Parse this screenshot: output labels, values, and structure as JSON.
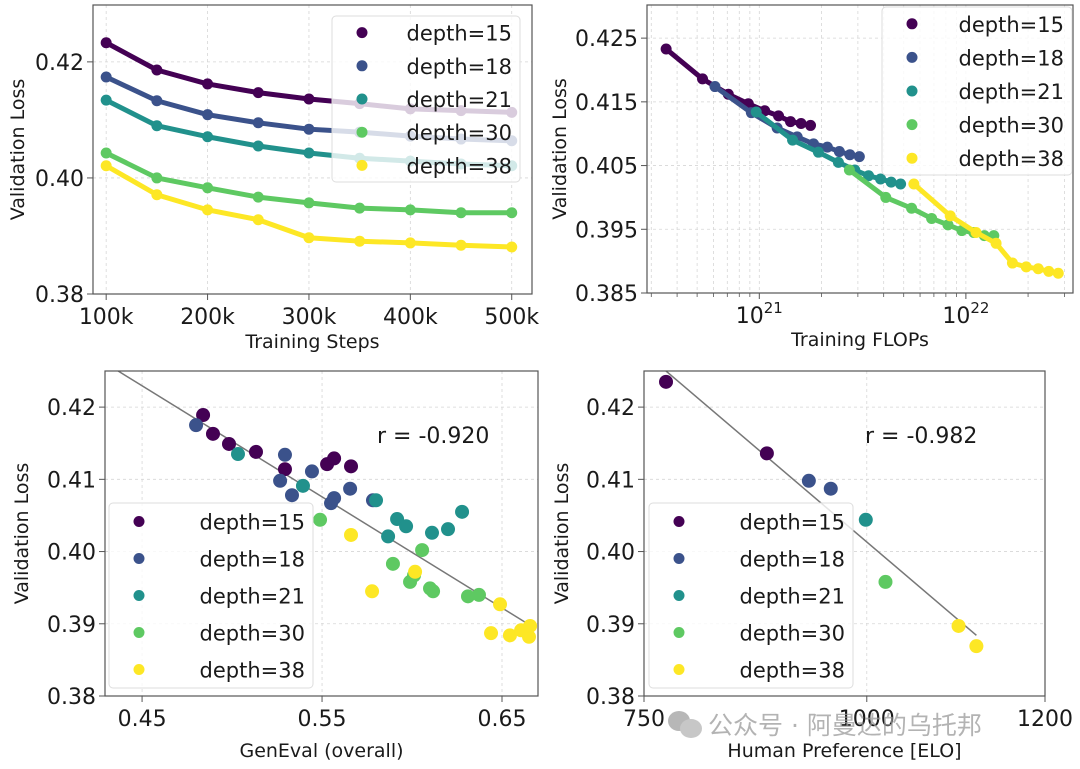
{
  "colors": {
    "depth=15": "#440154",
    "depth=18": "#3b528b",
    "depth=21": "#21918c",
    "depth=30": "#5ec962",
    "depth=38": "#fde725",
    "fit_line": "#777777"
  },
  "watermark": {
    "text": "公众号 · 阿曼达的乌托邦",
    "icon": "wechat-icon"
  },
  "chart_data": [
    {
      "id": "steps",
      "type": "line",
      "title": "",
      "xlabel": "Training Steps",
      "ylabel": "Validation Loss",
      "xscale": "linear",
      "xlim": [
        87000,
        520000
      ],
      "ylim": [
        0.38,
        0.4298
      ],
      "xticks": [
        100000,
        200000,
        300000,
        400000,
        500000
      ],
      "xtick_labels": [
        "100k",
        "200k",
        "300k",
        "400k",
        "500k"
      ],
      "yticks": [
        0.38,
        0.4,
        0.42
      ],
      "ytick_labels": [
        "0.38",
        "0.40",
        "0.42"
      ],
      "grid": true,
      "legend": "top-right",
      "x": [
        100000,
        150000,
        200000,
        250000,
        300000,
        350000,
        400000,
        450000,
        500000
      ],
      "series": [
        {
          "name": "depth=15",
          "values": [
            0.4233,
            0.4186,
            0.4162,
            0.4147,
            0.4136,
            0.4128,
            0.4119,
            0.4116,
            0.4113
          ]
        },
        {
          "name": "depth=18",
          "values": [
            0.4174,
            0.4133,
            0.4109,
            0.4095,
            0.4084,
            0.4079,
            0.4072,
            0.4067,
            0.4064
          ]
        },
        {
          "name": "depth=21",
          "values": [
            0.4134,
            0.409,
            0.4071,
            0.4055,
            0.4043,
            0.4034,
            0.4029,
            0.4024,
            0.4021
          ]
        },
        {
          "name": "depth=30",
          "values": [
            0.4043,
            0.4,
            0.3983,
            0.3967,
            0.3957,
            0.3948,
            0.3945,
            0.394,
            0.394
          ]
        },
        {
          "name": "depth=38",
          "values": [
            0.4021,
            0.3971,
            0.3945,
            0.3928,
            0.3897,
            0.3891,
            0.3888,
            0.3884,
            0.3881
          ]
        }
      ]
    },
    {
      "id": "flops",
      "type": "line",
      "title": "",
      "xlabel": "Training FLOPs",
      "ylabel": "Validation Loss",
      "xscale": "log",
      "xlim": [
        2.86e+20,
        3.3e+22
      ],
      "ylim": [
        0.385,
        0.4302
      ],
      "xticks": [
        1e+21,
        1e+22
      ],
      "xtick_labels": [
        "10",
        "10"
      ],
      "xtick_exponents": [
        "21",
        "22"
      ],
      "yticks": [
        0.385,
        0.395,
        0.405,
        0.415,
        0.425
      ],
      "ytick_labels": [
        "0.385",
        "0.395",
        "0.405",
        "0.415",
        "0.425"
      ],
      "grid": true,
      "legend": "top-right",
      "flops_per_step": {
        "depth=15": 3540000000000000.0,
        "depth=18": 6100000000000000.0,
        "depth=21": 9660000000000000.0,
        "depth=30": 2.73e+16,
        "depth=38": 5.6e+16
      },
      "steps": [
        100000,
        150000,
        200000,
        250000,
        300000,
        350000,
        400000,
        450000,
        500000
      ],
      "series": [
        {
          "name": "depth=15",
          "values": [
            0.4233,
            0.4186,
            0.4162,
            0.4147,
            0.4136,
            0.4128,
            0.4119,
            0.4116,
            0.4113
          ]
        },
        {
          "name": "depth=18",
          "values": [
            0.4174,
            0.4133,
            0.4109,
            0.4095,
            0.4084,
            0.4079,
            0.4072,
            0.4067,
            0.4064
          ]
        },
        {
          "name": "depth=21",
          "values": [
            0.4134,
            0.409,
            0.4071,
            0.4055,
            0.4043,
            0.4034,
            0.4029,
            0.4024,
            0.4021
          ]
        },
        {
          "name": "depth=30",
          "values": [
            0.4043,
            0.4,
            0.3983,
            0.3967,
            0.3957,
            0.3948,
            0.3945,
            0.394,
            0.394
          ]
        },
        {
          "name": "depth=38",
          "values": [
            0.4021,
            0.3971,
            0.3945,
            0.3928,
            0.3897,
            0.3891,
            0.3888,
            0.3884,
            0.3881
          ]
        }
      ]
    },
    {
      "id": "geneval",
      "type": "scatter",
      "title": "",
      "xlabel": "GenEval (overall)",
      "ylabel": "Validation Loss",
      "xscale": "linear",
      "xlim": [
        0.4294,
        0.67
      ],
      "ylim": [
        0.38,
        0.425
      ],
      "xticks": [
        0.45,
        0.55,
        0.65
      ],
      "xtick_labels": [
        "0.45",
        "0.55",
        "0.65"
      ],
      "yticks": [
        0.38,
        0.39,
        0.4,
        0.41,
        0.42
      ],
      "ytick_labels": [
        "0.38",
        "0.39",
        "0.40",
        "0.41",
        "0.42"
      ],
      "grid": true,
      "legend": "lower-left",
      "annotation": "r = -0.920",
      "fit_line": {
        "x": [
          0.4367,
          0.6656
        ],
        "y": [
          0.425,
          0.3898
        ]
      },
      "series": [
        {
          "name": "depth=15",
          "points": [
            [
              0.4839,
              0.4189
            ],
            [
              0.4894,
              0.4163
            ],
            [
              0.4983,
              0.4149
            ],
            [
              0.5133,
              0.4138
            ],
            [
              0.5294,
              0.4114
            ],
            [
              0.5528,
              0.4121
            ],
            [
              0.5567,
              0.4129
            ],
            [
              0.5661,
              0.4118
            ]
          ]
        },
        {
          "name": "depth=18",
          "points": [
            [
              0.48,
              0.4175
            ],
            [
              0.5294,
              0.4134
            ],
            [
              0.5444,
              0.4111
            ],
            [
              0.5267,
              0.4098
            ],
            [
              0.5333,
              0.4078
            ],
            [
              0.555,
              0.4067
            ],
            [
              0.5567,
              0.4074
            ],
            [
              0.5656,
              0.4087
            ],
            [
              0.5783,
              0.4071
            ]
          ]
        },
        {
          "name": "depth=21",
          "points": [
            [
              0.5033,
              0.4135
            ],
            [
              0.5394,
              0.4091
            ],
            [
              0.58,
              0.4071
            ],
            [
              0.5917,
              0.4045
            ],
            [
              0.5967,
              0.4035
            ],
            [
              0.5867,
              0.4021
            ],
            [
              0.6111,
              0.4026
            ],
            [
              0.62,
              0.4031
            ],
            [
              0.6278,
              0.4055
            ]
          ]
        },
        {
          "name": "depth=30",
          "points": [
            [
              0.5489,
              0.4044
            ],
            [
              0.6056,
              0.4002
            ],
            [
              0.5894,
              0.3983
            ],
            [
              0.6011,
              0.3967
            ],
            [
              0.5989,
              0.3958
            ],
            [
              0.61,
              0.3949
            ],
            [
              0.6117,
              0.3945
            ],
            [
              0.6311,
              0.3938
            ],
            [
              0.6372,
              0.394
            ]
          ]
        },
        {
          "name": "depth=38",
          "points": [
            [
              0.5661,
              0.4023
            ],
            [
              0.6017,
              0.3972
            ],
            [
              0.5778,
              0.3945
            ],
            [
              0.6489,
              0.3927
            ],
            [
              0.6439,
              0.3887
            ],
            [
              0.6544,
              0.3884
            ],
            [
              0.6606,
              0.3891
            ],
            [
              0.665,
              0.3882
            ],
            [
              0.6656,
              0.3897
            ]
          ]
        }
      ]
    },
    {
      "id": "elo",
      "type": "scatter",
      "title": "",
      "xlabel": "Human Preference [ELO]",
      "ylabel": "Validation Loss",
      "xscale": "linear",
      "xlim": [
        750,
        1200
      ],
      "ylim": [
        0.38,
        0.425
      ],
      "xticks": [
        750,
        1000,
        1200
      ],
      "xtick_labels": [
        "750",
        "1000",
        "1200"
      ],
      "yticks": [
        0.38,
        0.39,
        0.4,
        0.41,
        0.42
      ],
      "ytick_labels": [
        "0.38",
        "0.39",
        "0.40",
        "0.41",
        "0.42"
      ],
      "grid": true,
      "legend": "lower-left",
      "annotation": "r = -0.982",
      "fit_line": {
        "x": [
          774.7,
          1123
        ],
        "y": [
          0.425,
          0.3884
        ]
      },
      "series": [
        {
          "name": "depth=15",
          "points": [
            [
              774.7,
              0.4235
            ],
            [
              887.9,
              0.4136
            ]
          ]
        },
        {
          "name": "depth=18",
          "points": [
            [
              935.0,
              0.4098
            ],
            [
              959.6,
              0.4087
            ]
          ]
        },
        {
          "name": "depth=21",
          "points": [
            [
              998.9,
              0.4044
            ]
          ]
        },
        {
          "name": "depth=30",
          "points": [
            [
              1021.0,
              0.3958
            ]
          ]
        },
        {
          "name": "depth=38",
          "points": [
            [
              1103.0,
              0.3897
            ],
            [
              1123.0,
              0.3869
            ]
          ]
        }
      ]
    }
  ]
}
